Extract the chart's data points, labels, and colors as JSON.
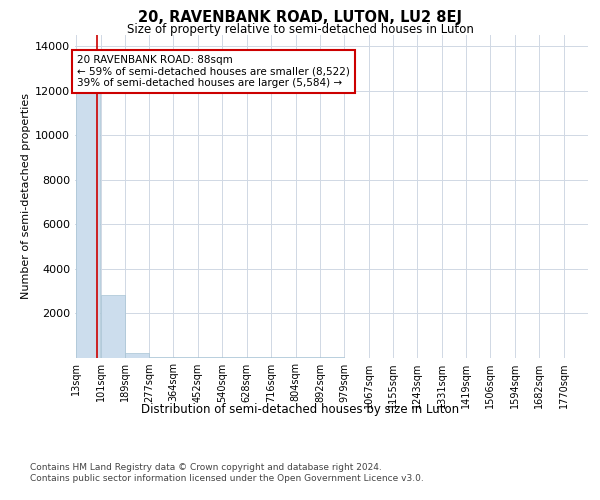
{
  "title": "20, RAVENBANK ROAD, LUTON, LU2 8EJ",
  "subtitle": "Size of property relative to semi-detached houses in Luton",
  "xlabel": "Distribution of semi-detached houses by size in Luton",
  "ylabel": "Number of semi-detached properties",
  "property_size": 88,
  "annotation_line1": "20 RAVENBANK ROAD: 88sqm",
  "annotation_line2": "← 59% of semi-detached houses are smaller (8,522)",
  "annotation_line3": "39% of semi-detached houses are larger (5,584) →",
  "bar_color": "#ccdded",
  "bar_edge_color": "#a8c4d4",
  "annotation_box_edge": "#cc0000",
  "vline_color": "#cc0000",
  "grid_color": "#d0d8e4",
  "background_color": "#ffffff",
  "footer_line1": "Contains HM Land Registry data © Crown copyright and database right 2024.",
  "footer_line2": "Contains public sector information licensed under the Open Government Licence v3.0.",
  "bin_edges": [
    13,
    101,
    189,
    277,
    364,
    452,
    540,
    628,
    716,
    804,
    892,
    979,
    1067,
    1155,
    1243,
    1331,
    1419,
    1506,
    1594,
    1682,
    1770
  ],
  "bin_labels": [
    "13sqm",
    "101sqm",
    "189sqm",
    "277sqm",
    "364sqm",
    "452sqm",
    "540sqm",
    "628sqm",
    "716sqm",
    "804sqm",
    "892sqm",
    "979sqm",
    "1067sqm",
    "1155sqm",
    "1243sqm",
    "1331sqm",
    "1419sqm",
    "1506sqm",
    "1594sqm",
    "1682sqm",
    "1770sqm"
  ],
  "bar_heights": [
    13000,
    2800,
    180,
    40,
    15,
    8,
    4,
    2,
    1,
    1,
    1,
    0,
    0,
    0,
    0,
    0,
    0,
    0,
    0,
    0
  ],
  "ylim": [
    0,
    14500
  ],
  "yticks": [
    0,
    2000,
    4000,
    6000,
    8000,
    10000,
    12000,
    14000
  ]
}
